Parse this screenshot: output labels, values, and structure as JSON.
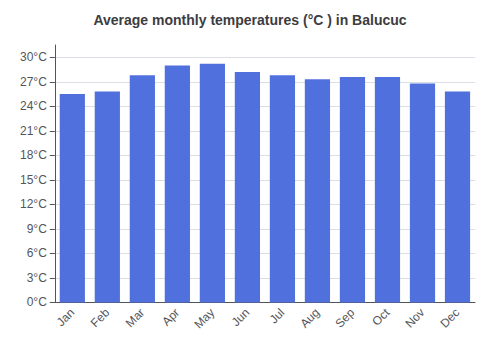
{
  "chart_data": {
    "type": "bar",
    "title": "Average monthly temperatures (°C ) in Balucuc",
    "categories": [
      "Jan",
      "Feb",
      "Mar",
      "Apr",
      "May",
      "Jun",
      "Jul",
      "Aug",
      "Sep",
      "Oct",
      "Nov",
      "Dec"
    ],
    "values": [
      25.5,
      25.8,
      27.8,
      29.0,
      29.2,
      28.2,
      27.8,
      27.3,
      27.6,
      27.6,
      26.8,
      25.8
    ],
    "ylim": [
      0,
      31.5
    ],
    "yticks": [
      {
        "value": 0,
        "label": "0°C"
      },
      {
        "value": 3,
        "label": "3°C"
      },
      {
        "value": 6,
        "label": "6°C"
      },
      {
        "value": 9,
        "label": "9°C"
      },
      {
        "value": 12,
        "label": "12°C"
      },
      {
        "value": 15,
        "label": "15°C"
      },
      {
        "value": 18,
        "label": "18°C"
      },
      {
        "value": 21,
        "label": "21°C"
      },
      {
        "value": 24,
        "label": "24°C"
      },
      {
        "value": 27,
        "label": "27°C"
      },
      {
        "value": 30,
        "label": "30°C"
      }
    ],
    "grid": true
  }
}
